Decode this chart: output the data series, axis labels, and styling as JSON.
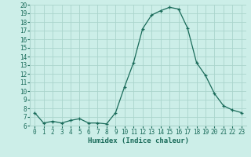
{
  "x": [
    0,
    1,
    2,
    3,
    4,
    5,
    6,
    7,
    8,
    9,
    10,
    11,
    12,
    13,
    14,
    15,
    16,
    17,
    18,
    19,
    20,
    21,
    22,
    23
  ],
  "y": [
    7.5,
    6.3,
    6.5,
    6.3,
    6.6,
    6.8,
    6.3,
    6.3,
    6.2,
    7.5,
    10.5,
    13.3,
    17.2,
    18.8,
    19.3,
    19.7,
    19.5,
    17.3,
    13.3,
    11.8,
    9.7,
    8.3,
    7.8,
    7.5
  ],
  "ylim": [
    6,
    20
  ],
  "xlim_min": -0.5,
  "xlim_max": 23.5,
  "yticks": [
    6,
    7,
    8,
    9,
    10,
    11,
    12,
    13,
    14,
    15,
    16,
    17,
    18,
    19,
    20
  ],
  "xticks": [
    0,
    1,
    2,
    3,
    4,
    5,
    6,
    7,
    8,
    9,
    10,
    11,
    12,
    13,
    14,
    15,
    16,
    17,
    18,
    19,
    20,
    21,
    22,
    23
  ],
  "xlabel": "Humidex (Indice chaleur)",
  "line_color": "#1a6b5a",
  "marker": "+",
  "markersize": 3,
  "linewidth": 0.9,
  "bg_color": "#cceee8",
  "grid_color": "#aad4cc",
  "tick_label_color": "#1a6b5a",
  "axis_label_color": "#1a6b5a",
  "tick_fontsize": 5.5,
  "label_fontsize": 6.5
}
